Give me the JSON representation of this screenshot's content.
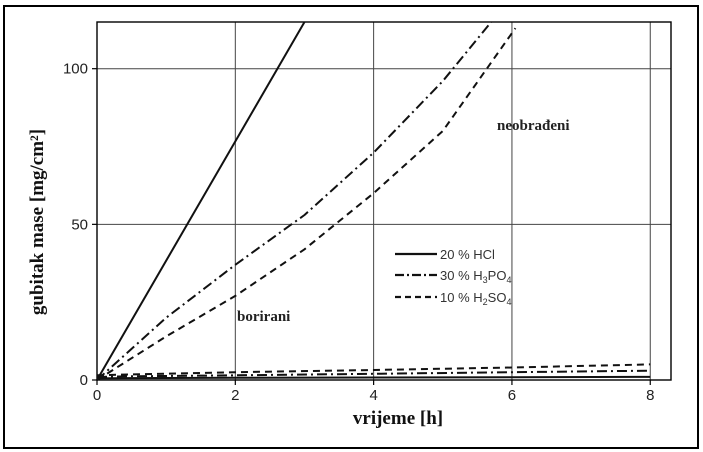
{
  "chart_data": {
    "type": "line",
    "xlabel": "vrijeme [h]",
    "ylabel": "gubitak mase [mg/cm²]",
    "xlim": [
      0,
      8.3
    ],
    "ylim": [
      0,
      115
    ],
    "x_ticks": [
      0,
      2,
      4,
      6,
      8
    ],
    "y_ticks": [
      0,
      50,
      100
    ],
    "grid": true,
    "legend_position": "center-right",
    "legend": [
      "20% HCl",
      "30% H3PO4",
      "10% H2SO4"
    ],
    "annotations": {
      "untreated": "neobrađeni",
      "borided": "borirani"
    },
    "series": [
      {
        "name": "20% HCl",
        "group": "neobrađeni",
        "style": "solid",
        "x": [
          0,
          3
        ],
        "y": [
          0,
          115
        ]
      },
      {
        "name": "30% H3PO4",
        "group": "neobrađeni",
        "style": "dash-dot",
        "x": [
          0,
          1,
          2,
          3,
          4,
          5,
          5.7
        ],
        "y": [
          0,
          20,
          37,
          53,
          73,
          96,
          115
        ]
      },
      {
        "name": "10% H2SO4",
        "group": "neobrađeni",
        "style": "dashed",
        "x": [
          0,
          1,
          2,
          3,
          4,
          5,
          6.05
        ],
        "y": [
          0,
          14,
          27,
          42,
          60,
          80,
          113
        ]
      },
      {
        "name": "20% HCl",
        "group": "borirani",
        "style": "solid",
        "x": [
          0,
          0.5,
          2,
          4,
          6,
          8
        ],
        "y": [
          0.5,
          0.6,
          0.7,
          0.8,
          0.9,
          1
        ]
      },
      {
        "name": "30% H3PO4",
        "group": "borirani",
        "style": "dash-dot",
        "x": [
          0,
          0.5,
          2,
          4,
          6,
          8
        ],
        "y": [
          1,
          1.2,
          1.5,
          2,
          2.5,
          3
        ]
      },
      {
        "name": "10% H2SO4",
        "group": "borirani",
        "style": "dashed",
        "x": [
          0,
          0.5,
          2,
          4,
          6,
          8
        ],
        "y": [
          1.5,
          1.8,
          2.5,
          3.2,
          4,
          5
        ]
      }
    ]
  }
}
